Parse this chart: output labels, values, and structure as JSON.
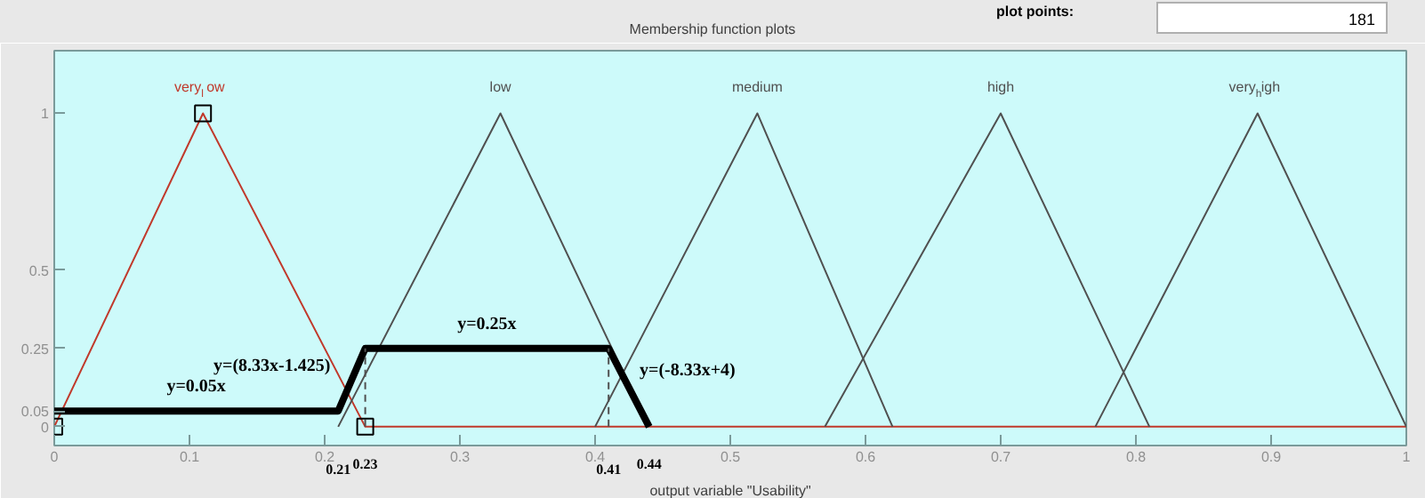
{
  "chart_data": {
    "type": "line",
    "title": "Membership function plots",
    "xlabel": "output variable \"Usability\"",
    "xlim": [
      0,
      1
    ],
    "ylim": [
      -0.06,
      1.2
    ],
    "xticks": [
      0,
      0.1,
      0.2,
      0.3,
      0.4,
      0.5,
      0.6,
      0.7,
      0.8,
      0.9,
      1
    ],
    "yticks": [
      0,
      0.05,
      0.25,
      0.5,
      1
    ],
    "grid": false,
    "marker": "none",
    "line_style": "solid",
    "series": [
      {
        "name": "very$_{l}$ow",
        "color": "#c0392b",
        "x": [
          0,
          0.11,
          0.23,
          1
        ],
        "values": [
          0,
          1,
          0,
          0
        ]
      },
      {
        "name": "low",
        "color": "#505050",
        "x": [
          0.21,
          0.33,
          0.44
        ],
        "values": [
          0,
          1,
          0
        ]
      },
      {
        "name": "medium",
        "color": "#505050",
        "x": [
          0.4,
          0.52,
          0.62
        ],
        "values": [
          0,
          1,
          0
        ]
      },
      {
        "name": "high",
        "color": "#505050",
        "x": [
          0.57,
          0.7,
          0.81
        ],
        "values": [
          0,
          1,
          0
        ]
      },
      {
        "name": "very$_{h}$igh",
        "color": "#505050",
        "x": [
          0.77,
          0.89,
          1
        ],
        "values": [
          0,
          1,
          0
        ]
      },
      {
        "color": "#000000",
        "x": [
          0,
          0.21,
          0.23,
          0.41,
          0.44
        ],
        "values": [
          0.05,
          0.05,
          0.25,
          0.25,
          0
        ]
      },
      {
        "color": "#505050",
        "x": [
          0.23,
          0.23
        ],
        "values": [
          0,
          0.25
        ],
        "line_style": "dashed"
      },
      {
        "color": "#505050",
        "x": [
          0.41,
          0.41
        ],
        "values": [
          0,
          0.25
        ],
        "line_style": "dashed"
      },
      {
        "type": "scatter",
        "marker": "square",
        "color": "#000000",
        "x": [
          0.11,
          0,
          0.23
        ],
        "values": [
          1,
          0,
          0
        ]
      }
    ],
    "annotations": [
      "plot points:",
      "181",
      "y=0.05x",
      "y=(8.33x-1.425)",
      "y=0.25x",
      "y=(-8.33x+4)",
      {
        "text": "0.21",
        "x": 0.21,
        "y": 0
      },
      {
        "text": "0.23",
        "x": 0.23,
        "y": 0
      },
      {
        "text": "0.41",
        "x": 0.41,
        "y": 0
      },
      {
        "text": "0.44",
        "x": 0.44,
        "y": 0
      }
    ]
  }
}
